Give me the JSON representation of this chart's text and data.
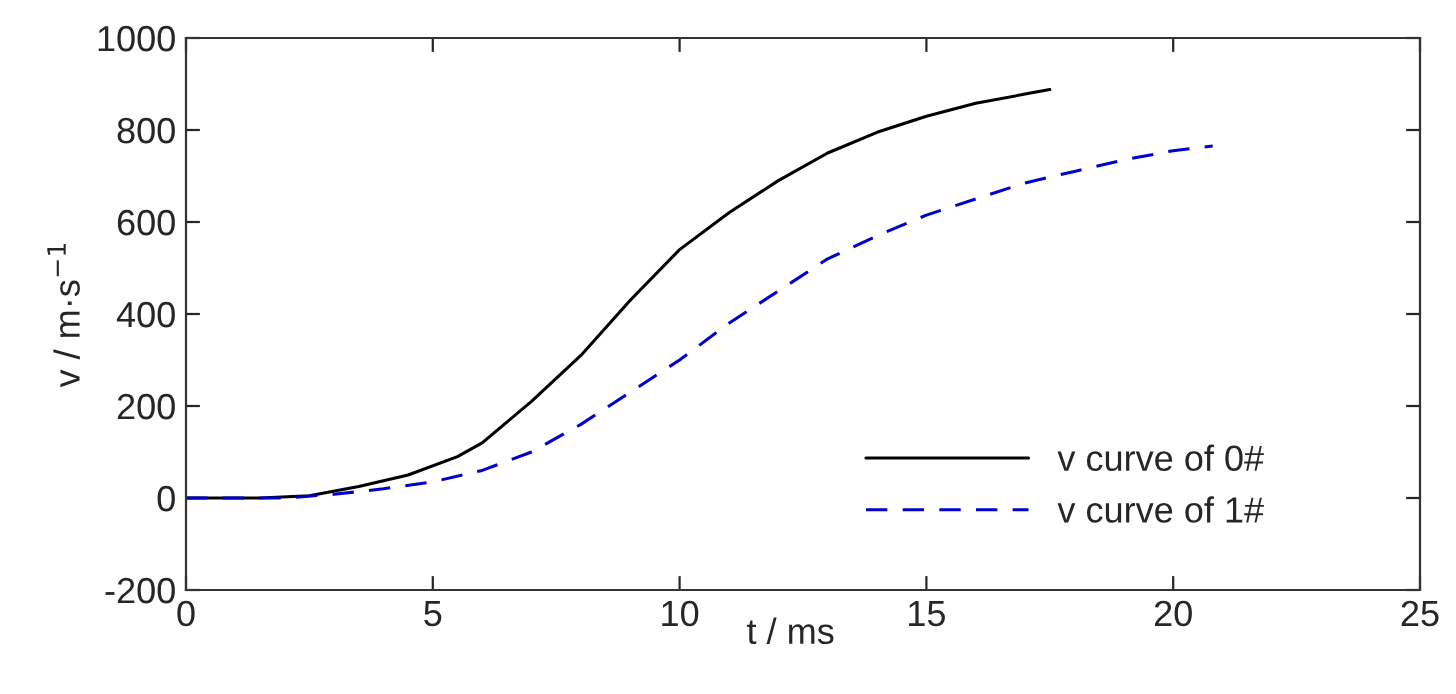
{
  "chart_data": {
    "type": "line",
    "xlabel": "t / ms",
    "ylabel": "v / m·s$^{−1}$",
    "xlim": [
      0,
      25
    ],
    "xticks": [
      0,
      5,
      10,
      15,
      20,
      25
    ],
    "ylim": [
      -200,
      1000
    ],
    "yticks": [
      -200,
      0,
      200,
      400,
      600,
      800,
      1000
    ],
    "grid": false,
    "legend": "bottom right",
    "series": [
      {
        "name": "v curve of 0#",
        "color": "#000000",
        "line_style": "solid",
        "x": [
          0,
          1.5,
          2.5,
          3.5,
          4.5,
          5.5,
          6,
          7,
          8,
          9,
          10,
          11,
          12,
          13,
          14,
          15,
          16,
          17,
          17.5
        ],
        "values": [
          0,
          0,
          5,
          25,
          50,
          90,
          120,
          210,
          310,
          430,
          540,
          620,
          690,
          750,
          795,
          830,
          858,
          878,
          888
        ]
      },
      {
        "name": "v curve of 1#",
        "color": "#0000cc",
        "line_style": "dashed",
        "x": [
          0,
          2,
          3,
          4,
          5,
          6,
          7,
          8,
          9,
          10,
          11,
          12,
          13,
          14,
          15,
          16,
          17,
          18,
          19,
          20,
          20.8
        ],
        "values": [
          0,
          0,
          8,
          20,
          35,
          60,
          100,
          160,
          230,
          300,
          380,
          450,
          520,
          570,
          615,
          650,
          685,
          710,
          735,
          755,
          765
        ]
      }
    ]
  }
}
